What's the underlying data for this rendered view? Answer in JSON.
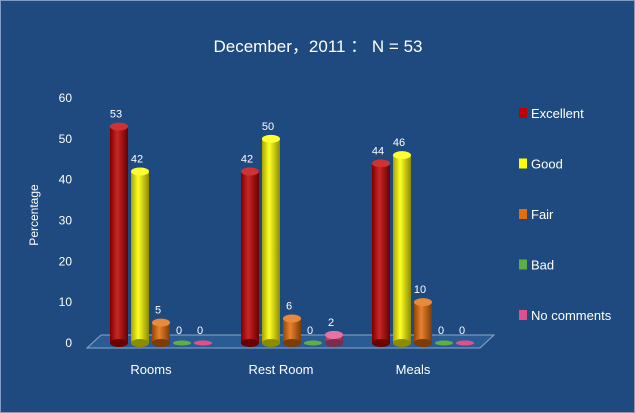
{
  "chart_data": {
    "type": "bar",
    "title": "December，2011 ： N = 53",
    "ylabel": "Percentage",
    "xlabel": "",
    "ylim": [
      0,
      60
    ],
    "yticks": [
      "0",
      "10",
      "20",
      "30",
      "40",
      "50",
      "60"
    ],
    "categories": [
      "Rooms",
      "Rest Room",
      "Meals"
    ],
    "series": [
      {
        "name": "Excellent",
        "values": [
          53,
          42,
          44
        ],
        "color": "#c00000"
      },
      {
        "name": "Good",
        "values": [
          42,
          50,
          46
        ],
        "color": "#ffff00"
      },
      {
        "name": "Fair",
        "values": [
          5,
          6,
          10
        ],
        "color": "#e46c0a"
      },
      {
        "name": "Bad",
        "values": [
          0,
          0,
          0
        ],
        "color": "#5fae46"
      },
      {
        "name": "No comments",
        "values": [
          0,
          2,
          0
        ],
        "color": "#e0508a"
      }
    ],
    "legend": "right",
    "grid": false
  }
}
